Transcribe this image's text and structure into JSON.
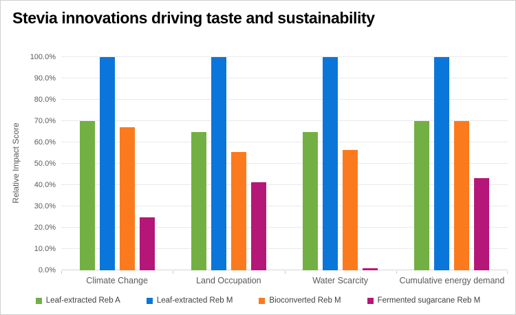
{
  "title": "Stevia innovations driving taste and sustainability",
  "chart_data": {
    "type": "bar",
    "title": "Stevia innovations driving taste and sustainability",
    "xlabel": "",
    "ylabel": "Relative Impact Score",
    "ylim": [
      0,
      100
    ],
    "y_ticks": [
      "0.0%",
      "10.0%",
      "20.0%",
      "30.0%",
      "40.0%",
      "50.0%",
      "60.0%",
      "70.0%",
      "80.0%",
      "90.0%",
      "100.0%"
    ],
    "grid": true,
    "legend_position": "bottom",
    "categories": [
      "Climate Change",
      "Land Occupation",
      "Water Scarcity",
      "Cumulative energy demand"
    ],
    "series": [
      {
        "name": "Leaf-extracted Reb A",
        "color": "#72B043",
        "values": [
          70,
          65,
          65,
          70
        ]
      },
      {
        "name": "Leaf-extracted Reb M",
        "color": "#0B76D9",
        "values": [
          100,
          100,
          100,
          100
        ]
      },
      {
        "name": "Bioconverted Reb M",
        "color": "#FB7A1D",
        "values": [
          67,
          55.5,
          56.5,
          70
        ]
      },
      {
        "name": "Fermented sugarcane Reb M",
        "color": "#B51778",
        "values": [
          25,
          41.3,
          1.1,
          43.2
        ]
      }
    ]
  },
  "colors": {
    "gridline": "#e9e9e9",
    "axis_line": "#d6d6d6",
    "tick_mark": "#c9c9c9",
    "tick_text": "#595959",
    "legend_text": "#3f3f3f",
    "title_text": "#000000",
    "background": "#ffffff"
  }
}
